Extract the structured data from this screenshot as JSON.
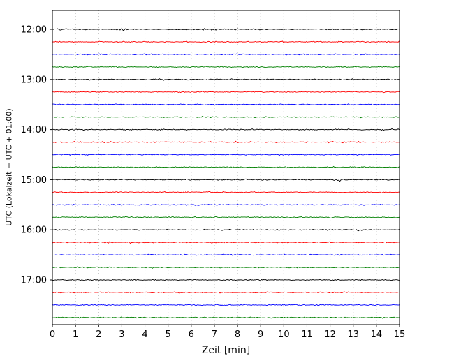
{
  "chart_data": {
    "type": "line",
    "subtype": "seismogram-dayplot",
    "title": "",
    "xlabel": "Zeit  [min]",
    "ylabel": "UTC (Lokalzeit = UTC + 01:00)",
    "x_range": [
      0,
      15
    ],
    "minutes_per_row": 15,
    "x_tick_labels": [
      "0",
      "1",
      "2",
      "3",
      "4",
      "5",
      "6",
      "7",
      "8",
      "9",
      "10",
      "11",
      "12",
      "13",
      "14",
      "15"
    ],
    "grid": {
      "vertical_dotted": true,
      "color": "#b8b8b8"
    },
    "row_colors_cycle": [
      "#000000",
      "#ff0000",
      "#0000ff",
      "#008000"
    ],
    "rows": [
      {
        "time": "12:00",
        "label": "12:00",
        "color": "#000000"
      },
      {
        "time": "12:15",
        "label": "",
        "color": "#ff0000"
      },
      {
        "time": "12:30",
        "label": "",
        "color": "#0000ff"
      },
      {
        "time": "12:45",
        "label": "",
        "color": "#008000"
      },
      {
        "time": "13:00",
        "label": "13:00",
        "color": "#000000"
      },
      {
        "time": "13:15",
        "label": "",
        "color": "#ff0000"
      },
      {
        "time": "13:30",
        "label": "",
        "color": "#0000ff"
      },
      {
        "time": "13:45",
        "label": "",
        "color": "#008000"
      },
      {
        "time": "14:00",
        "label": "14:00",
        "color": "#000000"
      },
      {
        "time": "14:15",
        "label": "",
        "color": "#ff0000"
      },
      {
        "time": "14:30",
        "label": "",
        "color": "#0000ff"
      },
      {
        "time": "14:45",
        "label": "",
        "color": "#008000"
      },
      {
        "time": "15:00",
        "label": "15:00",
        "color": "#000000"
      },
      {
        "time": "15:15",
        "label": "",
        "color": "#ff0000"
      },
      {
        "time": "15:30",
        "label": "",
        "color": "#0000ff"
      },
      {
        "time": "15:45",
        "label": "",
        "color": "#008000"
      },
      {
        "time": "16:00",
        "label": "16:00",
        "color": "#000000"
      },
      {
        "time": "16:15",
        "label": "",
        "color": "#ff0000"
      },
      {
        "time": "16:30",
        "label": "",
        "color": "#0000ff"
      },
      {
        "time": "16:45",
        "label": "",
        "color": "#008000"
      },
      {
        "time": "17:00",
        "label": "17:00",
        "color": "#000000"
      },
      {
        "time": "17:15",
        "label": "",
        "color": "#ff0000"
      },
      {
        "time": "17:30",
        "label": "",
        "color": "#0000ff"
      },
      {
        "time": "17:45",
        "label": "",
        "color": "#008000"
      }
    ],
    "events": [
      {
        "row": 0,
        "minute": 0.3,
        "duration": 0.5,
        "amp": 2.2
      },
      {
        "row": 0,
        "minute": 2.95,
        "duration": 0.35,
        "amp": 2.6
      },
      {
        "row": 0,
        "minute": 6.8,
        "duration": 0.6,
        "amp": 1.7
      },
      {
        "row": 0,
        "minute": 13.3,
        "duration": 0.3,
        "amp": 1.6
      },
      {
        "row": 4,
        "minute": 4.65,
        "duration": 0.4,
        "amp": 2.5
      },
      {
        "row": 4,
        "minute": 9.2,
        "duration": 0.5,
        "amp": 1.5
      },
      {
        "row": 6,
        "minute": 7.5,
        "duration": 0.4,
        "amp": 1.5
      },
      {
        "row": 9,
        "minute": 12.8,
        "duration": 0.4,
        "amp": 1.5
      },
      {
        "row": 10,
        "minute": 9.5,
        "duration": 0.5,
        "amp": 1.6
      },
      {
        "row": 12,
        "minute": 12.3,
        "duration": 0.18,
        "amp": 3.6
      },
      {
        "row": 13,
        "minute": 5.2,
        "duration": 0.4,
        "amp": 1.5
      },
      {
        "row": 16,
        "minute": 13.2,
        "duration": 0.2,
        "amp": 2.5
      },
      {
        "row": 16,
        "minute": 10.0,
        "duration": 0.5,
        "amp": 1.5
      },
      {
        "row": 17,
        "minute": 2.4,
        "duration": 0.4,
        "amp": 2.0
      },
      {
        "row": 20,
        "minute": 9.0,
        "duration": 0.3,
        "amp": 1.5
      },
      {
        "row": 22,
        "minute": 7.4,
        "duration": 0.25,
        "amp": 2.6
      },
      {
        "row": 22,
        "minute": 1.7,
        "duration": 0.3,
        "amp": 1.5
      }
    ]
  }
}
